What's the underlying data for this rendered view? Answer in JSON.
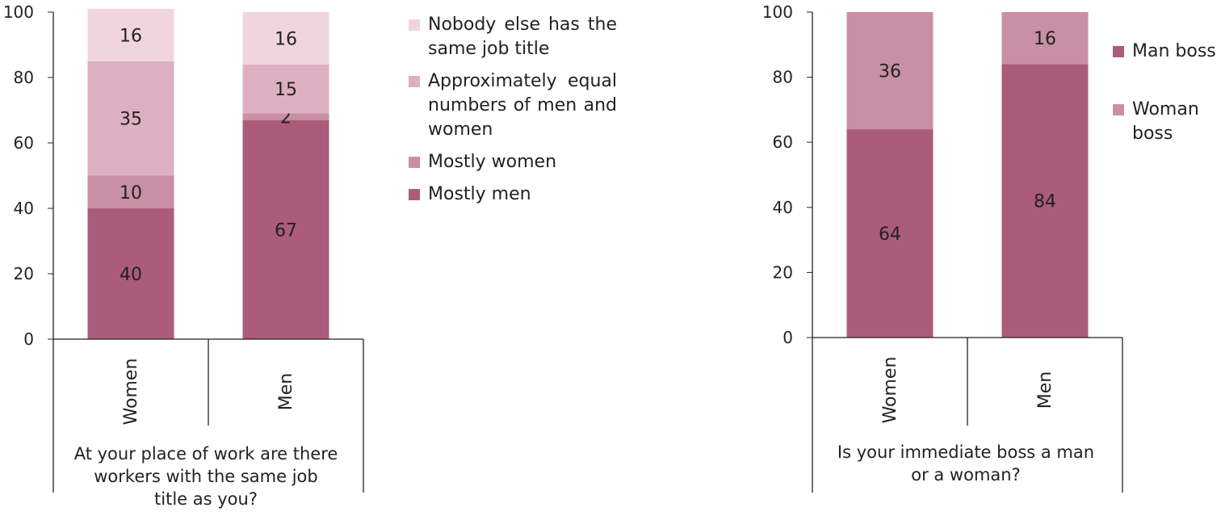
{
  "colors": {
    "mostly_men": "#ab5c7a",
    "mostly_women": "#c98fa4",
    "equal": "#ddb0c1",
    "nobody": "#f0d5df",
    "man_boss": "#ab5c7a",
    "woman_boss": "#c98fa4"
  },
  "chart_data": [
    {
      "type": "bar",
      "stacked": true,
      "categories": [
        "Women",
        "Men"
      ],
      "series": [
        {
          "name": "Mostly men",
          "values": [
            40,
            67
          ],
          "color": "#ab5c7a"
        },
        {
          "name": "Mostly women",
          "values": [
            10,
            2
          ],
          "color": "#c98fa4"
        },
        {
          "name": "Approximately equal numbers of men and women",
          "values": [
            35,
            15
          ],
          "color": "#ddb0c1"
        },
        {
          "name": "Nobody else has the same job title",
          "values": [
            16,
            16
          ],
          "color": "#f0d5df"
        }
      ],
      "legend_order": [
        3,
        2,
        1,
        0
      ],
      "xlabel": "At your place of work are there workers with the same job title as you?",
      "ylabel": "",
      "ylim": [
        0,
        100
      ],
      "yticks": [
        0,
        20,
        40,
        60,
        80,
        100
      ]
    },
    {
      "type": "bar",
      "stacked": true,
      "categories": [
        "Women",
        "Men"
      ],
      "series": [
        {
          "name": "Man boss",
          "values": [
            64,
            84
          ],
          "color": "#ab5c7a"
        },
        {
          "name": "Woman boss",
          "values": [
            36,
            16
          ],
          "color": "#c98fa4"
        }
      ],
      "legend_order": [
        0,
        1
      ],
      "xlabel": "Is your immediate boss a man or a woman?",
      "ylabel": "",
      "ylim": [
        0,
        100
      ],
      "yticks": [
        0,
        20,
        40,
        60,
        80,
        100
      ]
    }
  ]
}
